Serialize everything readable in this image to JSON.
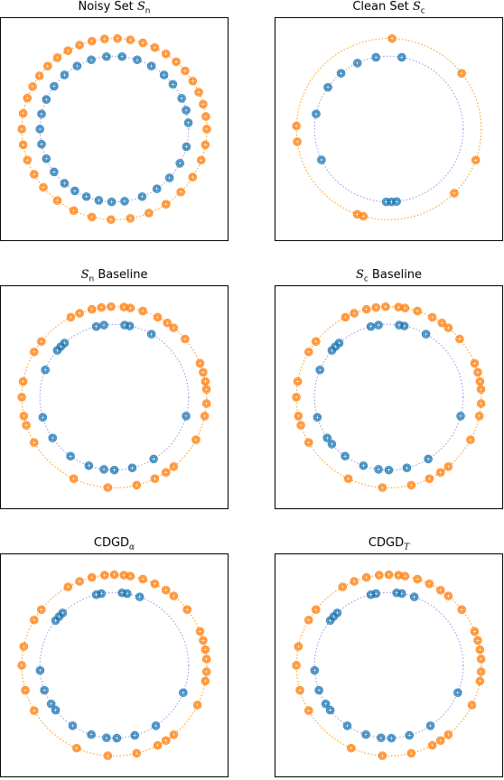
{
  "colors": {
    "inner": "#1f77b4",
    "outer": "#ff7f0e",
    "inner_curve": "#9c9ce8",
    "outer_curve": "#ff9f1a"
  },
  "chart_data": [
    {
      "type": "scatter",
      "title_text": "Noisy Set ",
      "title_math": "S",
      "title_sub": "n",
      "xlabel": "",
      "ylabel": "",
      "xlim": [
        -1.25,
        1.25
      ],
      "ylim": [
        -1.25,
        1.25
      ],
      "grid": false,
      "series": [
        {
          "class": "inner",
          "radius": 0.82,
          "angles": [
            5,
            15,
            25,
            38,
            48,
            60,
            72,
            84,
            96,
            108,
            120,
            132,
            144,
            156,
            168,
            180,
            192,
            204,
            216,
            228,
            238,
            248,
            258,
            268,
            278,
            292,
            305,
            318,
            332,
            346
          ]
        },
        {
          "class": "outer",
          "radius": 1.02,
          "angles": [
            0,
            8,
            16,
            24,
            32,
            40,
            48,
            56,
            64,
            72,
            80,
            88,
            96,
            104,
            112,
            120,
            128,
            136,
            144,
            152,
            160,
            170,
            180,
            190,
            200,
            210,
            220,
            232,
            244,
            256,
            268,
            280,
            292,
            304,
            316,
            328,
            340,
            350
          ]
        }
      ]
    },
    {
      "type": "scatter",
      "title_text": "Clean Set ",
      "title_math": "S",
      "title_sub": "c",
      "xlabel": "",
      "ylabel": "",
      "xlim": [
        -1.25,
        1.25
      ],
      "ylim": [
        -1.25,
        1.25
      ],
      "grid": false,
      "series": [
        {
          "class": "inner",
          "radius": 0.82,
          "angles": [
            80,
            100,
            115,
            130,
            145,
            168,
            205,
            268,
            272,
            276
          ]
        },
        {
          "class": "outer",
          "radius": 1.02,
          "angles": [
            38,
            88,
            178,
            188,
            250,
            254,
            315,
            340
          ]
        }
      ]
    },
    {
      "type": "scatter",
      "title_text": " Baseline",
      "title_math": "S",
      "title_sub": "n",
      "xlabel": "",
      "ylabel": "",
      "xlim": [
        -1.25,
        1.25
      ],
      "ylim": [
        -1.25,
        1.25
      ],
      "grid": false,
      "series": [
        {
          "class": "inner",
          "radius": 0.82,
          "angles": [
            60,
            78,
            82,
            98,
            104,
            132,
            136,
            140,
            158,
            196,
            214,
            234,
            250,
            262,
            270,
            284,
            302,
            345
          ]
        },
        {
          "class": "outer",
          "radius": 1.02,
          "angles": [
            5,
            10,
            16,
            22,
            40,
            50,
            55,
            62,
            72,
            80,
            84,
            92,
            98,
            104,
            112,
            118,
            142,
            150,
            170,
            180,
            192,
            198,
            210,
            244,
            266,
            284,
            296,
            304,
            310,
            332,
            348,
            356
          ]
        }
      ]
    },
    {
      "type": "scatter",
      "title_text": " Baseline",
      "title_math": "S",
      "title_sub": "c",
      "xlabel": "",
      "ylabel": "",
      "xlim": [
        -1.25,
        1.25
      ],
      "ylim": [
        -1.25,
        1.25
      ],
      "grid": false,
      "series": [
        {
          "class": "inner",
          "radius": 0.82,
          "angles": [
            60,
            78,
            82,
            98,
            104,
            132,
            136,
            140,
            158,
            196,
            214,
            220,
            234,
            250,
            262,
            270,
            284,
            302,
            345
          ]
        },
        {
          "class": "outer",
          "radius": 1.02,
          "angles": [
            5,
            10,
            16,
            22,
            40,
            50,
            55,
            62,
            72,
            80,
            84,
            92,
            98,
            104,
            112,
            118,
            142,
            150,
            170,
            180,
            192,
            198,
            210,
            244,
            266,
            284,
            296,
            304,
            310,
            332,
            348,
            356
          ]
        }
      ]
    },
    {
      "type": "scatter",
      "title_text": "CDGD",
      "title_math": "",
      "title_sub": "α",
      "xlabel": "",
      "ylabel": "",
      "xlim": [
        -1.25,
        1.25
      ],
      "ylim": [
        -1.25,
        1.25
      ],
      "grid": false,
      "series": [
        {
          "class": "inner",
          "radius": 0.82,
          "angles": [
            70,
            80,
            84,
            100,
            104,
            134,
            138,
            142,
            184,
            200,
            212,
            218,
            236,
            252,
            264,
            272,
            286,
            304,
            338
          ]
        },
        {
          "class": "outer",
          "radius": 1.02,
          "angles": [
            4,
            10,
            16,
            22,
            38,
            50,
            56,
            64,
            72,
            80,
            84,
            90,
            96,
            104,
            112,
            120,
            142,
            150,
            168,
            180,
            196,
            210,
            246,
            266,
            284,
            298,
            304,
            310,
            334,
            350,
            356
          ]
        }
      ]
    },
    {
      "type": "scatter",
      "title_text": "CDGD",
      "title_math": "",
      "title_sub": "T",
      "xlabel": "",
      "ylabel": "",
      "xlim": [
        -1.25,
        1.25
      ],
      "ylim": [
        -1.25,
        1.25
      ],
      "grid": false,
      "series": [
        {
          "class": "inner",
          "radius": 0.82,
          "angles": [
            70,
            80,
            84,
            100,
            104,
            134,
            138,
            142,
            184,
            200,
            212,
            218,
            236,
            252,
            264,
            272,
            286,
            304,
            338
          ]
        },
        {
          "class": "outer",
          "radius": 1.02,
          "angles": [
            4,
            10,
            16,
            22,
            38,
            50,
            56,
            64,
            72,
            80,
            84,
            90,
            96,
            104,
            112,
            120,
            142,
            150,
            168,
            180,
            196,
            210,
            246,
            266,
            284,
            298,
            304,
            310,
            334,
            350,
            356
          ]
        }
      ]
    }
  ]
}
